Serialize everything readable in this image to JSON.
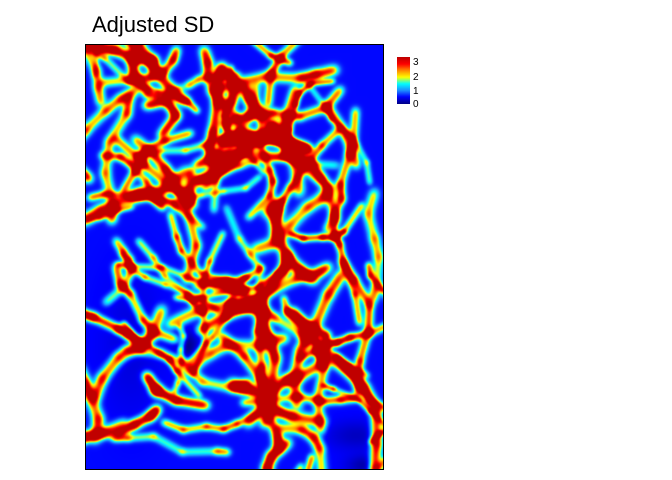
{
  "chart_data": {
    "type": "heatmap",
    "title": "Adjusted SD",
    "xlabel": "",
    "ylabel": "",
    "colorbar": {
      "min": 0,
      "max": 3.3,
      "ticks": [
        "0",
        "1",
        "2",
        "3"
      ],
      "tick_values": [
        0,
        1,
        2,
        3
      ],
      "placement": "top-right"
    },
    "colormap": [
      "#00008b",
      "#0000ff",
      "#1e90ff",
      "#00ffff",
      "#ffff00",
      "#ff8c00",
      "#ff0000",
      "#c00000"
    ],
    "grid": false,
    "axes_ticks": false
  }
}
